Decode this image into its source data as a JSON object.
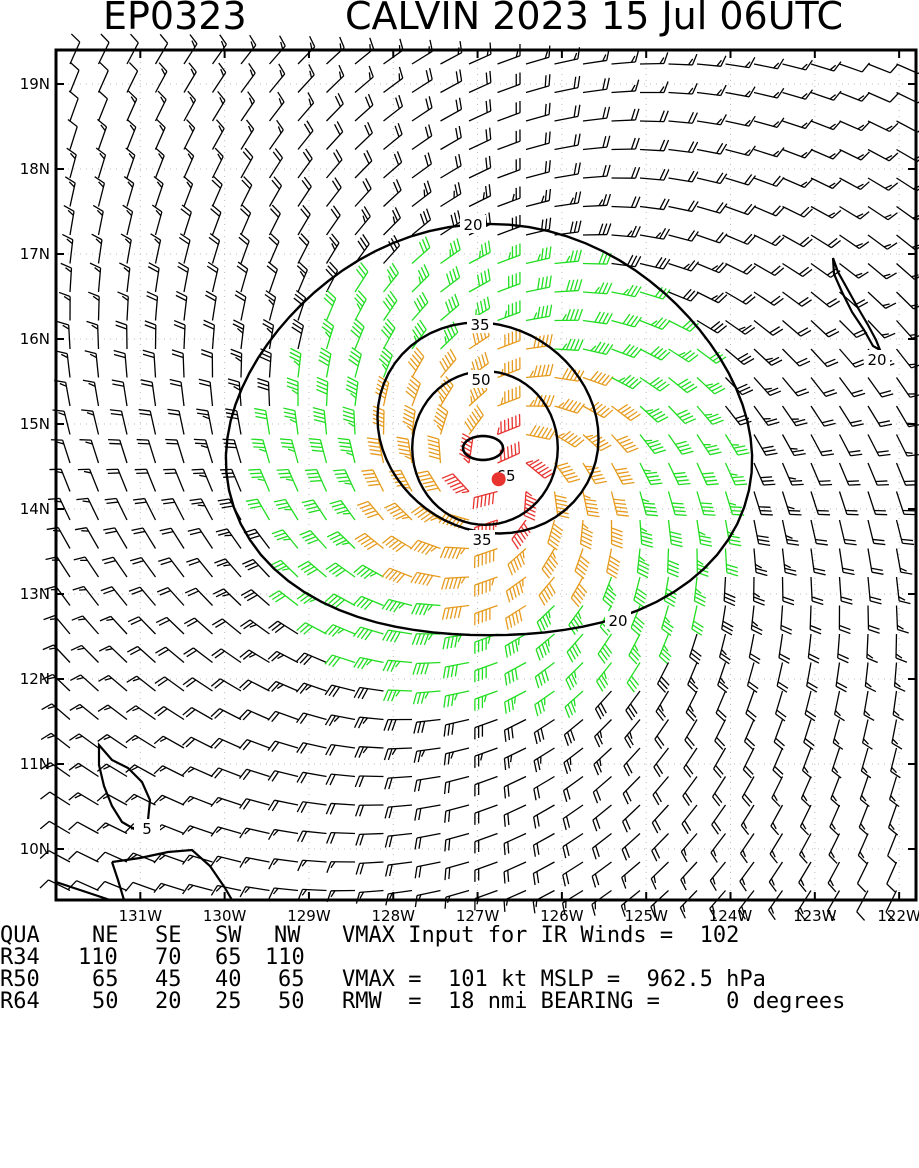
{
  "header": {
    "storm_id": "EP0323",
    "storm_title": "CALVIN 2023 15 Jul 06UTC"
  },
  "map": {
    "lon_range": [
      -132.0,
      -121.8
    ],
    "lat_range": [
      9.4,
      19.4
    ],
    "lat_ticks": [
      "19N",
      "18N",
      "17N",
      "16N",
      "15N",
      "14N",
      "13N",
      "12N",
      "11N",
      "10N"
    ],
    "lat_values": [
      19,
      18,
      17,
      16,
      15,
      14,
      13,
      12,
      11,
      10
    ],
    "lon_ticks": [
      "131W",
      "130W",
      "129W",
      "128W",
      "127W",
      "126W",
      "125W",
      "124W",
      "123W",
      "122W"
    ],
    "lon_values": [
      -131,
      -130,
      -129,
      -128,
      -127,
      -126,
      -125,
      -124,
      -123,
      -122
    ],
    "center": {
      "lon": -126.75,
      "lat": 14.35
    },
    "contour_labels": [
      "20",
      "35",
      "50",
      "65",
      "35",
      "20",
      "20",
      "5"
    ],
    "wind_colors": {
      "below_34": "#000000",
      "34_to_50": "#22dd22",
      "50_to_64": "#e69b1e",
      "64_plus": "#e8332f"
    },
    "center_marker_color": "#e8332f"
  },
  "table": {
    "header_row": [
      "QUA",
      "NE",
      "SE",
      "SW",
      "NW"
    ],
    "rows": [
      [
        "R34",
        "110",
        "70",
        "65",
        "110"
      ],
      [
        "R50",
        "65",
        "45",
        "40",
        "65"
      ],
      [
        "R64",
        "50",
        "20",
        "25",
        "50"
      ]
    ],
    "line1": "VMAX Input for IR Winds =  102",
    "line2": "VMAX =  101 kt MSLP =  962.5 hPa",
    "line3": "RMW  =  18 nmi BEARING =     0 degrees"
  }
}
